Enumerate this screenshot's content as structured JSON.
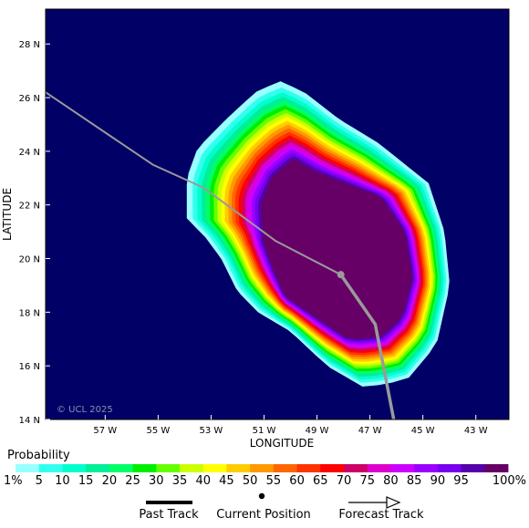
{
  "map": {
    "xlabel": "LONGITUDE",
    "ylabel": "LATITUDE",
    "lon_range": [
      -59.25,
      -41.75
    ],
    "lat_range": [
      14,
      29.3
    ],
    "lon_ticks": [
      "57 W",
      "55 W",
      "53 W",
      "51 W",
      "49 W",
      "47 W",
      "45 W",
      "43 W"
    ],
    "lon_tick_values": [
      -57,
      -55,
      -53,
      -51,
      -49,
      -47,
      -45,
      -43
    ],
    "lat_ticks": [
      "14 N",
      "16 N",
      "18 N",
      "20 N",
      "22 N",
      "24 N",
      "26 N",
      "28 N"
    ],
    "lat_tick_values": [
      14,
      16,
      18,
      20,
      22,
      24,
      26,
      28
    ],
    "ocean_color": "#000066",
    "copyright": "© UCL 2025",
    "track": {
      "past": [],
      "forecast": [
        [
          -59.25,
          26.2
        ],
        [
          -55.2,
          23.5
        ],
        [
          -53.3,
          22.65
        ],
        [
          -50.55,
          20.65
        ],
        [
          -48.1,
          19.4
        ],
        [
          -46.8,
          17.55
        ],
        [
          -46.1,
          14.0
        ]
      ],
      "current_position": [
        -48.1,
        19.4
      ],
      "color": "#9a9a9a"
    }
  },
  "legend": {
    "title": "Probability",
    "labels": [
      "1%",
      "5",
      "10",
      "15",
      "20",
      "25",
      "30",
      "35",
      "40",
      "45",
      "50",
      "55",
      "60",
      "65",
      "70",
      "75",
      "80",
      "85",
      "90",
      "95",
      "100%"
    ],
    "colors": [
      "#99ffff",
      "#33ffee",
      "#00ffcc",
      "#00ee99",
      "#00ff66",
      "#00ee00",
      "#66ff00",
      "#ccff00",
      "#ffff00",
      "#ffcc00",
      "#ff9900",
      "#ff6600",
      "#ff3300",
      "#ff0000",
      "#cc0066",
      "#dd00cc",
      "#cc00ff",
      "#9900ff",
      "#7700ee",
      "#5500aa",
      "#660066"
    ],
    "track_keys": {
      "past": "Past Track",
      "current": "Current Position",
      "forecast": "Forecast Track"
    }
  }
}
